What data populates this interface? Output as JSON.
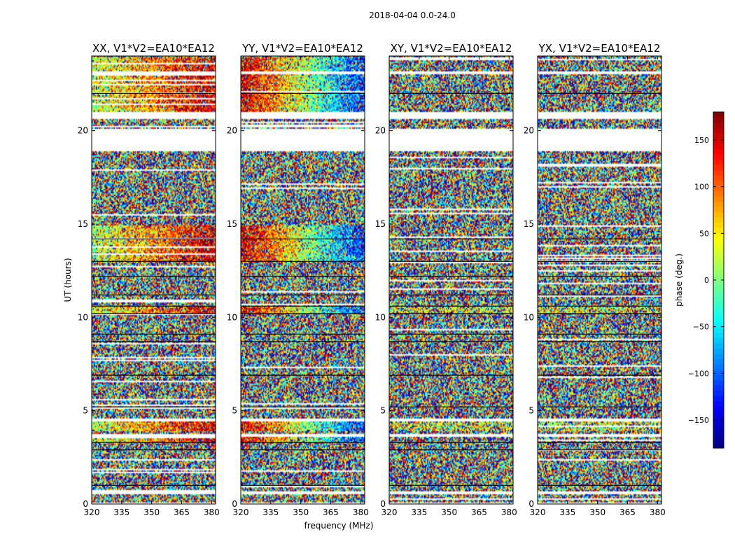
{
  "chart_data": {
    "type": "heatmap",
    "suptitle": "2018-04-04 0.0-24.0",
    "xlabel": "frequency (MHz)",
    "ylabel": "UT (hours)",
    "xlim": [
      320,
      382
    ],
    "ylim": [
      0,
      24
    ],
    "xticks": [
      320,
      335,
      350,
      365,
      380
    ],
    "yticks": [
      0,
      5,
      10,
      15,
      20
    ],
    "panels": [
      {
        "title": "XX, V1*V2=EA10*EA12",
        "coherence": "high"
      },
      {
        "title": "YY, V1*V2=EA10*EA12",
        "coherence": "high-inverted"
      },
      {
        "title": "XY, V1*V2=EA10*EA12",
        "coherence": "low"
      },
      {
        "title": "YX, V1*V2=EA10*EA12",
        "coherence": "low"
      }
    ],
    "colorbar": {
      "label": "phase (deg.)",
      "range": [
        -180,
        180
      ],
      "ticks": [
        -150,
        -100,
        -50,
        0,
        50,
        100,
        150
      ],
      "ticklabels": [
        "−150",
        "−100",
        "−50",
        "0",
        "50",
        "100",
        "150"
      ],
      "colormap": "jet"
    },
    "data_gaps_hours": [
      [
        0.0,
        0.08
      ],
      [
        0.5,
        0.7
      ],
      [
        3.6,
        3.75
      ],
      [
        4.4,
        4.6
      ],
      [
        18.9,
        20.1
      ],
      [
        20.6,
        21.0
      ],
      [
        23.0,
        23.2
      ]
    ],
    "flag_lines_hours": [
      1.0,
      2.9,
      3.3,
      5.2,
      6.9,
      8.7,
      9.1,
      10.2,
      10.6,
      11.2,
      12.2,
      13.0,
      14.2,
      22.0
    ]
  }
}
